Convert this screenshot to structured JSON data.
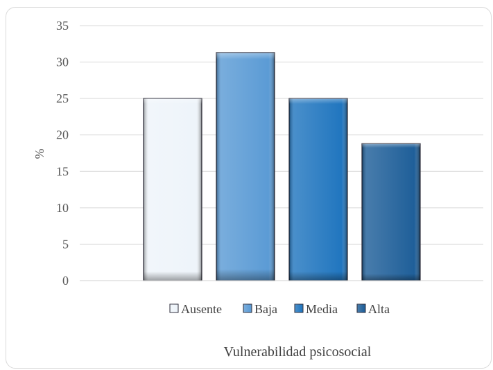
{
  "chart_data": {
    "type": "bar",
    "categories": [
      "Ausente",
      "Baja",
      "Media",
      "Alta"
    ],
    "values": [
      25,
      31.3,
      25,
      18.8
    ],
    "colors": [
      "#eef4fa",
      "#5b9bd5",
      "#2176bf",
      "#1f5f99"
    ],
    "xlabel": "Vulnerabilidad psicosocial",
    "ylabel": "%",
    "ylim": [
      0,
      35
    ],
    "yticks": [
      0,
      5,
      10,
      15,
      20,
      25,
      30,
      35
    ],
    "grid": true,
    "legend_position": "bottom"
  }
}
